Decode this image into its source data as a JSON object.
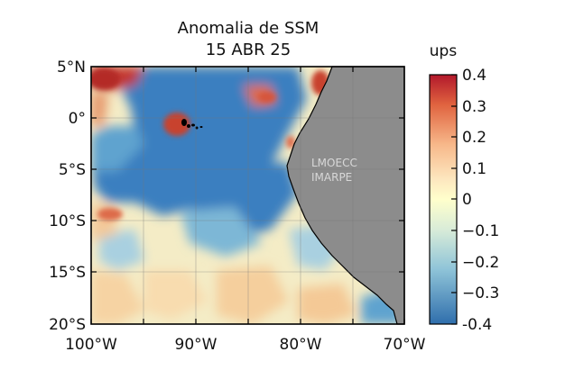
{
  "title_line1": "Anomalia de SSM",
  "title_line2": "15 ABR 25",
  "watermark": [
    "LMOECC",
    "IMARPE"
  ],
  "map": {
    "lon_range": [
      -100,
      -70
    ],
    "lat_range": [
      -20,
      5
    ],
    "lon_ticks": [
      "100°W",
      "90°W",
      "80°W",
      "70°W"
    ],
    "lat_ticks": [
      "5°N",
      "0°",
      "5°S",
      "10°S",
      "15°S",
      "20°S"
    ],
    "land_color": "#8c8c8c",
    "grid": true
  },
  "colorbar": {
    "unit": "ups",
    "range": [
      -0.4,
      0.4
    ],
    "ticks": [
      "0.4",
      "0.3",
      "0.2",
      "0.1",
      "0",
      "−0.1",
      "−0.2",
      "−0.3",
      "-0.4"
    ],
    "colors": [
      "#b2182b",
      "#ef8a62",
      "#fddbc7",
      "#ffffbf",
      "#d1e5f0",
      "#67a9cf",
      "#2166ac"
    ]
  }
}
